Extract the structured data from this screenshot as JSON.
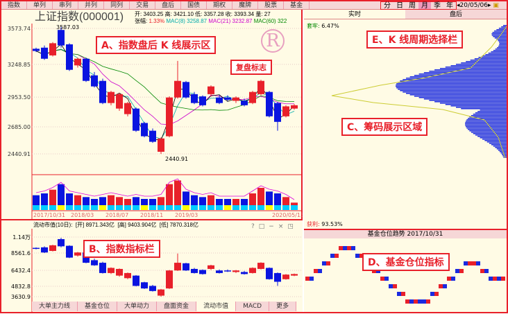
{
  "topbar": {
    "tabs": [
      "指数",
      "单列",
      "串列",
      "并列",
      "同列",
      "交易",
      "盘后",
      "国债",
      "期权",
      "魔牌",
      "股票",
      "基金"
    ]
  },
  "periods": {
    "items": [
      "分",
      "日",
      "周",
      "月",
      "季",
      "年"
    ],
    "active": "月",
    "date": "20/05/06"
  },
  "main": {
    "title": "上证指数(000001)",
    "ohlc": "开: 3403.25 高: 3421.10 低: 3357.28 收: 3393.34 量: 27",
    "change_label": "张幅:",
    "change": "1.33%",
    "ma8": "MAC(8) 3258.87",
    "ma21": "MAC(21) 3232.87",
    "ma60": "MAC(60) 322",
    "y_labels": [
      "3573.74",
      "3248.85",
      "2953.50",
      "2685.00",
      "2440.91"
    ],
    "high_label": "3587.03",
    "low_label": "2440.91",
    "x_labels": [
      "2017/10/31",
      "2018/03",
      "2018/07",
      "2018/11",
      "2019/03",
      "2020/05/13"
    ],
    "replay_mark": "R",
    "candles": [
      [
        3390,
        3400,
        3360,
        3370
      ],
      [
        3400,
        3420,
        3290,
        3300
      ],
      [
        3330,
        3450,
        3320,
        3440
      ],
      [
        3560,
        3587,
        3400,
        3420
      ],
      [
        3430,
        3440,
        3190,
        3200
      ],
      [
        3240,
        3310,
        3220,
        3300
      ],
      [
        3300,
        3310,
        3090,
        3100
      ],
      [
        3150,
        3180,
        3040,
        3050
      ],
      [
        3100,
        3120,
        2890,
        2900
      ],
      [
        2900,
        3010,
        2880,
        3000
      ],
      [
        2850,
        2990,
        2830,
        2980
      ],
      [
        2800,
        2910,
        2780,
        2900
      ],
      [
        2850,
        2860,
        2640,
        2650
      ],
      [
        2720,
        2730,
        2590,
        2600
      ],
      [
        2650,
        2670,
        2540,
        2550
      ],
      [
        2460,
        2590,
        2440,
        2580
      ],
      [
        2600,
        2960,
        2590,
        2950
      ],
      [
        2950,
        3280,
        2940,
        3100
      ],
      [
        3090,
        3100,
        2940,
        2950
      ],
      [
        2980,
        3000,
        2890,
        2900
      ],
      [
        2960,
        2970,
        2870,
        2880
      ],
      [
        2980,
        3060,
        2960,
        3050
      ],
      [
        2950,
        2970,
        2890,
        2900
      ],
      [
        2950,
        2970,
        2920,
        2930
      ],
      [
        2920,
        2960,
        2900,
        2950
      ],
      [
        2920,
        2940,
        2870,
        2880
      ],
      [
        2900,
        3010,
        2890,
        3000
      ],
      [
        2980,
        3110,
        2970,
        3100
      ],
      [
        3000,
        3010,
        2770,
        2780
      ],
      [
        2900,
        2910,
        2650,
        2730
      ],
      [
        2780,
        2880,
        2770,
        2870
      ],
      [
        2850,
        2890,
        2840,
        2880
      ]
    ],
    "volumes": [
      40,
      45,
      55,
      70,
      45,
      40,
      35,
      30,
      35,
      40,
      35,
      30,
      35,
      30,
      30,
      35,
      70,
      80,
      50,
      40,
      35,
      40,
      30,
      30,
      30,
      30,
      45,
      60,
      50,
      45,
      35,
      20
    ]
  },
  "sub": {
    "header": "流动市值(10日):",
    "open": "[开] 8971.343亿",
    "high": "[高] 9403.904亿",
    "low": "[低] 7870.318亿",
    "y_labels": [
      "1.14万",
      "8561.6",
      "6432.4",
      "4832.8",
      "3630.9"
    ],
    "tabs": [
      "大单主力线",
      "基金仓位",
      "大单动力",
      "盘面资金",
      "流动市值",
      "MACD",
      "更多"
    ]
  },
  "right": {
    "tabs": [
      "实时",
      "盘后"
    ],
    "lock_label": "套牢:",
    "lock": "6.47%",
    "profit_label": "获利:",
    "profit": "93.53%"
  },
  "fund": {
    "title": "基金仓位趋势 2017/10/31",
    "levels": [
      3,
      4,
      5,
      6,
      7,
      7,
      6,
      5,
      4,
      3,
      2,
      1,
      0,
      0,
      0,
      1,
      2,
      3,
      4,
      5,
      5,
      4,
      3,
      3
    ]
  },
  "callouts": {
    "a": "A、指数盘后 K 线展示区",
    "replay": "复盘标志",
    "b": "B、指数指标栏",
    "c": "C、筹码展示区域",
    "d": "D、基金仓位指标",
    "e": "E、K 线周期选择栏"
  },
  "colors": {
    "up": "#e8202a",
    "down": "#0a14e0",
    "frame": "#e8202a"
  }
}
